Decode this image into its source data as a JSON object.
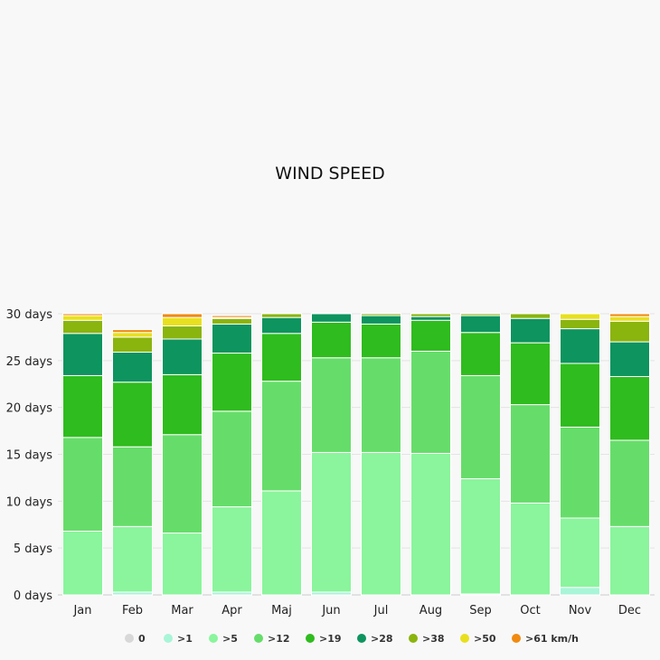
{
  "chart_data": {
    "type": "bar",
    "stacked": true,
    "title": "WIND SPEED",
    "categories": [
      "Jan",
      "Feb",
      "Mar",
      "Apr",
      "Maj",
      "Jun",
      "Jul",
      "Aug",
      "Sep",
      "Oct",
      "Nov",
      "Dec"
    ],
    "y_ticks": [
      "0 days",
      "5 days",
      "10 days",
      "15 days",
      "20 days",
      "25 days",
      "30 days"
    ],
    "ylim": [
      0,
      30
    ],
    "grid": true,
    "legend_position": "bottom",
    "series": [
      {
        "name": "0",
        "color": "#d8d8d8",
        "values": [
          0,
          0,
          0,
          0,
          0,
          0,
          0,
          0,
          0,
          0,
          0,
          0
        ]
      },
      {
        "name": ">1",
        "color": "#a8f5d8",
        "values": [
          0,
          0.3,
          0,
          0.3,
          0,
          0.3,
          0,
          0,
          0.1,
          0,
          0.8,
          0
        ]
      },
      {
        "name": ">5",
        "color": "#8af59c",
        "values": [
          6.8,
          7,
          6.6,
          9.1,
          11.1,
          14.9,
          15.2,
          15.1,
          12.3,
          9.8,
          7.4,
          7.3
        ]
      },
      {
        "name": ">12",
        "color": "#66dd6a",
        "values": [
          10,
          8.5,
          10.5,
          10.2,
          11.7,
          10.1,
          10.1,
          10.9,
          11,
          10.5,
          9.7,
          9.2
        ]
      },
      {
        "name": ">19",
        "color": "#2fbc1e",
        "values": [
          6.6,
          6.9,
          6.4,
          6.2,
          5.1,
          3.8,
          3.6,
          3.3,
          4.6,
          6.6,
          6.8,
          6.8
        ]
      },
      {
        "name": ">28",
        "color": "#0e945e",
        "values": [
          4.5,
          3.2,
          3.8,
          3.1,
          1.7,
          0.9,
          0.9,
          0.4,
          1.8,
          2.6,
          3.7,
          3.7
        ]
      },
      {
        "name": ">38",
        "color": "#8ab40e",
        "values": [
          1.4,
          1.6,
          1.4,
          0.6,
          0.4,
          0,
          0.2,
          0.3,
          0.2,
          0.5,
          1,
          2.2
        ]
      },
      {
        "name": ">50",
        "color": "#e8e01e",
        "values": [
          0.5,
          0.5,
          0.9,
          0.1,
          0,
          0,
          0,
          0,
          0,
          0,
          0.6,
          0.5
        ]
      },
      {
        "name": ">61 km/h",
        "color": "#f08a10",
        "values": [
          0.2,
          0.3,
          0.4,
          0.2,
          0,
          0,
          0,
          0,
          0,
          0,
          0,
          0.3
        ]
      }
    ]
  }
}
